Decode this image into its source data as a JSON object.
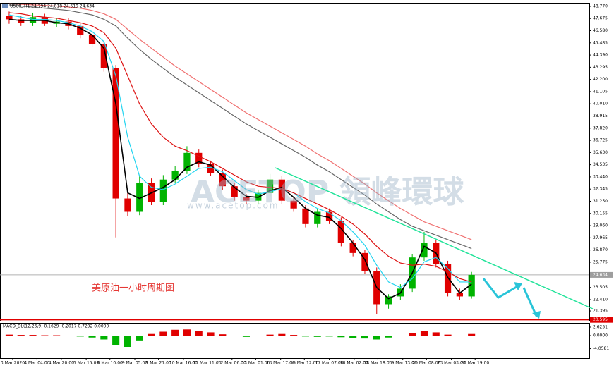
{
  "chart_data": [
    {
      "type": "candlestick",
      "title": "USOIL,H1 24.794 24.818 24.519 24.634",
      "annotation": "美原油一小时周期图",
      "watermark": "ACETOP 領峰環球",
      "watermark_url": "www.acetop.com",
      "up_color": "#00b300",
      "down_color": "#e00000",
      "open": [
        47.9,
        47.6,
        47.3,
        47.8,
        47.2,
        47.4,
        47.0,
        46.2,
        45.4,
        43.2,
        31.5,
        30.3,
        32.9,
        31.2,
        33.2,
        34.0,
        35.6,
        34.6,
        33.8,
        32.6,
        31.6,
        31.3,
        32.0,
        33.2,
        31.3,
        30.6,
        29.2,
        30.3,
        29.5,
        27.5,
        26.6,
        25.0,
        22.0,
        22.7,
        23.4,
        26.2,
        27.5,
        25.6,
        23.0,
        22.7
      ],
      "high": [
        48.3,
        47.9,
        48.2,
        48.1,
        47.7,
        47.7,
        47.3,
        46.5,
        45.7,
        43.5,
        32.0,
        33.5,
        33.3,
        33.6,
        34.4,
        36.2,
        35.9,
        34.9,
        34.1,
        32.9,
        31.9,
        32.3,
        33.7,
        33.5,
        31.6,
        30.9,
        30.6,
        30.6,
        29.8,
        27.8,
        26.9,
        25.3,
        22.9,
        23.8,
        26.5,
        28.5,
        27.8,
        25.9,
        23.4,
        24.9
      ],
      "low": [
        47.2,
        47.0,
        47.0,
        47.0,
        46.9,
        46.7,
        45.9,
        45.1,
        42.9,
        28.0,
        29.9,
        30.0,
        30.9,
        30.9,
        32.9,
        33.7,
        34.3,
        33.5,
        32.3,
        31.3,
        31.0,
        31.0,
        31.7,
        31.0,
        30.3,
        28.9,
        28.9,
        29.2,
        27.2,
        26.3,
        24.7,
        21.1,
        21.6,
        22.4,
        23.1,
        25.9,
        25.3,
        22.7,
        22.4,
        22.5
      ],
      "close": [
        47.6,
        47.3,
        47.8,
        47.2,
        47.4,
        47.0,
        46.2,
        45.4,
        43.2,
        31.5,
        30.3,
        32.9,
        31.2,
        33.2,
        34.0,
        35.6,
        34.6,
        33.8,
        32.6,
        31.6,
        31.3,
        32.0,
        33.2,
        31.3,
        30.6,
        29.2,
        30.3,
        29.5,
        27.5,
        26.6,
        25.0,
        22.0,
        22.7,
        23.4,
        26.2,
        27.5,
        25.6,
        23.0,
        22.7,
        24.634
      ],
      "series": [
        {
          "color": "#000000",
          "values": [
            47.6,
            47.5,
            47.5,
            47.5,
            47.3,
            47.2,
            46.8,
            46.2,
            45.0,
            40.0,
            32.0,
            31.5,
            32.0,
            32.5,
            33.2,
            34.3,
            34.8,
            34.5,
            33.5,
            32.5,
            31.7,
            31.6,
            32.2,
            32.5,
            31.6,
            30.6,
            30.0,
            29.8,
            28.8,
            27.5,
            26.0,
            23.5,
            22.5,
            23.0,
            24.8,
            27.2,
            26.6,
            24.4,
            23.0,
            23.8
          ]
        },
        {
          "color": "#21d4f0",
          "values": [
            48.0,
            47.8,
            47.6,
            47.6,
            47.5,
            47.3,
            47.0,
            46.5,
            45.6,
            42.5,
            37.0,
            33.5,
            32.5,
            32.3,
            32.8,
            33.5,
            34.2,
            34.3,
            33.9,
            33.1,
            32.3,
            31.9,
            32.1,
            32.4,
            32.0,
            31.2,
            30.6,
            30.2,
            29.5,
            28.5,
            27.3,
            25.5,
            24.0,
            23.5,
            24.3,
            25.8,
            26.2,
            25.2,
            24.0,
            24.0
          ]
        },
        {
          "color": "#dd1111",
          "values": [
            48.2,
            48.1,
            47.9,
            47.8,
            47.7,
            47.5,
            47.3,
            47.0,
            46.4,
            45.0,
            42.5,
            40.0,
            38.2,
            37.0,
            36.2,
            35.8,
            35.3,
            34.8,
            34.2,
            33.6,
            33.0,
            32.6,
            32.5,
            32.4,
            32.0,
            31.5,
            31.0,
            30.5,
            29.9,
            29.2,
            28.3,
            27.2,
            26.3,
            25.7,
            25.5,
            25.6,
            25.4,
            24.9,
            24.3,
            24.0
          ]
        },
        {
          "color": "#666666",
          "values": [
            48.9,
            48.8,
            48.7,
            48.6,
            48.5,
            48.4,
            48.2,
            48.0,
            47.6,
            47.0,
            45.9,
            44.9,
            44.0,
            43.2,
            42.4,
            41.7,
            41.0,
            40.3,
            39.6,
            38.9,
            38.2,
            37.6,
            37.0,
            36.4,
            35.8,
            35.2,
            34.5,
            33.9,
            33.2,
            32.5,
            31.8,
            31.0,
            30.3,
            29.6,
            29.0,
            28.6,
            28.2,
            27.8,
            27.4,
            27.0
          ]
        },
        {
          "color": "#f07070",
          "values": [
            49.0,
            48.95,
            48.9,
            48.85,
            48.8,
            48.7,
            48.6,
            48.4,
            48.1,
            47.6,
            46.7,
            45.8,
            45.0,
            44.2,
            43.4,
            42.7,
            42.0,
            41.3,
            40.6,
            39.9,
            39.2,
            38.6,
            38.0,
            37.4,
            36.8,
            36.2,
            35.5,
            34.9,
            34.2,
            33.5,
            32.8,
            32.0,
            31.3,
            30.6,
            30.0,
            29.4,
            29.0,
            28.6,
            28.2,
            27.8
          ]
        }
      ],
      "xlim": [
        -0.77,
        48.93
      ],
      "xticks": [
        {
          "value": 0.3,
          "label": "3 Mar 2020"
        },
        {
          "value": 2.35,
          "label": "4 Mar 04:00"
        },
        {
          "value": 4.4,
          "label": "4 Mar 20:00"
        },
        {
          "value": 6.5,
          "label": "5 Mar 15:00"
        },
        {
          "value": 8.5,
          "label": "6 Mar 10:00"
        },
        {
          "value": 10.6,
          "label": "9 Mar 05:00"
        },
        {
          "value": 12.6,
          "label": "9 Mar 21:00"
        },
        {
          "value": 14.7,
          "label": "10 Mar 16:00"
        },
        {
          "value": 16.7,
          "label": "11 Mar 11:00"
        },
        {
          "value": 18.8,
          "label": "12 Mar 06:00"
        },
        {
          "value": 20.8,
          "label": "13 Mar 01:00"
        },
        {
          "value": 22.9,
          "label": "13 Mar 17:00"
        },
        {
          "value": 24.9,
          "label": "16 Mar 12:00"
        },
        {
          "value": 27.0,
          "label": "17 Mar 07:00"
        },
        {
          "value": 29.1,
          "label": "18 Mar 02:00"
        },
        {
          "value": 31.1,
          "label": "18 Mar 18:00"
        },
        {
          "value": 33.2,
          "label": "19 Mar 13:00"
        },
        {
          "value": 35.2,
          "label": "20 Mar 08:00"
        },
        {
          "value": 37.3,
          "label": "23 Mar 03:00"
        },
        {
          "value": 39.3,
          "label": "23 Mar 19:00"
        }
      ],
      "ylim": [
        20.51,
        49.02
      ],
      "yticks": [
        {
          "value": 48.77,
          "label": "48.770"
        },
        47.675,
        {
          "value": 46.58,
          "label": "46.580"
        },
        45.485,
        {
          "value": 44.39,
          "label": "44.390"
        },
        43.295,
        {
          "value": 42.2,
          "label": "42.200"
        },
        41.105,
        {
          "value": 40.01,
          "label": "40.010"
        },
        38.915,
        {
          "value": 37.82,
          "label": "37.820"
        },
        36.725,
        {
          "value": 35.63,
          "label": "35.630"
        },
        34.535,
        {
          "value": 33.44,
          "label": "33.440"
        },
        32.345,
        {
          "value": 31.25,
          "label": "31.250"
        },
        30.155,
        {
          "value": 29.06,
          "label": "29.060"
        },
        27.965,
        {
          "value": 26.87,
          "label": "26.870"
        },
        25.775,
        23.505,
        {
          "value": 22.41,
          "label": "22.410"
        },
        21.395
      ],
      "current_price": 24.634,
      "bottom_line": 20.595
    },
    {
      "type": "bar",
      "title": "MACD_DL(12,26,9) 0.1629 -0.2017 0.7292 0.0000",
      "color": "#e00000",
      "values": [
        0.3,
        0.2,
        0.2,
        0.1,
        0.1,
        0.0,
        -0.3,
        -0.6,
        -1.2,
        -3.0,
        -3.5,
        -1.5,
        0.5,
        1.2,
        1.8,
        1.9,
        1.5,
        1.0,
        0.4,
        -0.2,
        -0.4,
        -0.2,
        0.3,
        0.5,
        0.2,
        -0.3,
        -0.4,
        -0.3,
        -0.5,
        -0.7,
        -0.9,
        -1.2,
        -0.6,
        0.0,
        0.8,
        1.4,
        1.0,
        0.3,
        -0.1,
        0.5
      ],
      "ylim": [
        -7.0,
        3.72
      ],
      "yticks": [
        {
          "value": 2.6251,
          "label": "2.6251"
        },
        {
          "value": 0,
          "label": "0.0000"
        },
        {
          "value": -4.0581,
          "label": "-4.0581"
        }
      ]
    }
  ]
}
